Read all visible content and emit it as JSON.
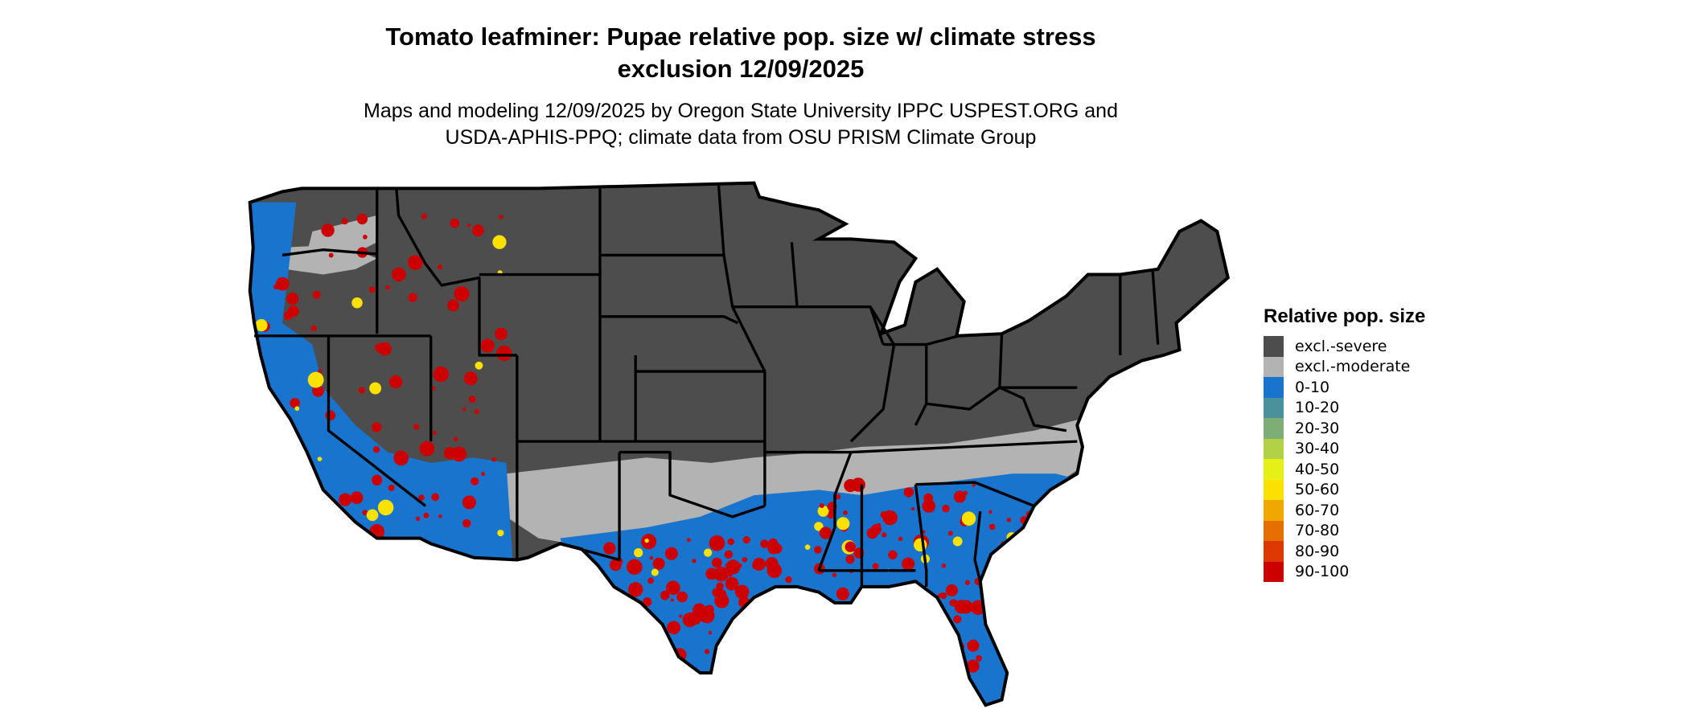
{
  "title_line1": "Tomato leafminer: Pupae relative pop. size w/ climate stress",
  "title_line2": "exclusion 12/09/2025",
  "subtitle_line1": "Maps and modeling 12/09/2025 by Oregon State University IPPC USPEST.ORG and",
  "subtitle_line2": "USDA-APHIS-PPQ; climate data from OSU PRISM Climate Group",
  "legend": {
    "title": "Relative pop. size",
    "items": [
      {
        "label": "excl.-severe",
        "color": "#4d4d4d"
      },
      {
        "label": "excl.-moderate",
        "color": "#b3b3b3"
      },
      {
        "label": "0-10",
        "color": "#1874cd"
      },
      {
        "label": "10-20",
        "color": "#4a919b"
      },
      {
        "label": "20-30",
        "color": "#7cae75"
      },
      {
        "label": "30-40",
        "color": "#b2d147"
      },
      {
        "label": "40-50",
        "color": "#e5f018"
      },
      {
        "label": "50-60",
        "color": "#fae100"
      },
      {
        "label": "60-70",
        "color": "#f0a800"
      },
      {
        "label": "70-80",
        "color": "#e57000"
      },
      {
        "label": "80-90",
        "color": "#dc3800"
      },
      {
        "label": "90-100",
        "color": "#cd0000"
      }
    ]
  }
}
